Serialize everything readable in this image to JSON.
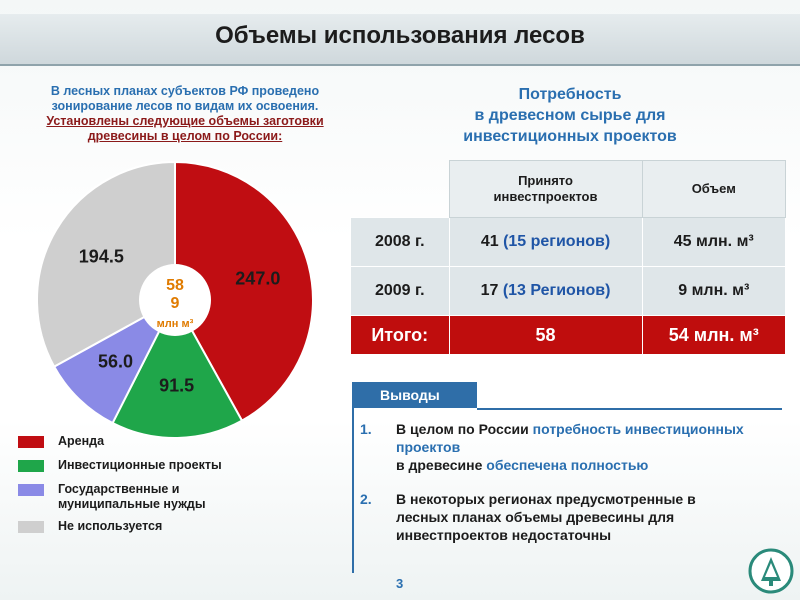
{
  "title": "Объемы использования лесов",
  "left_note": {
    "line1": "В лесных планах субъектов РФ проведено зонирование лесов по видам их освоения.",
    "line2": "Установлены следующие объемы заготовки древесины в целом по России:"
  },
  "center_label": {
    "value_a": "58",
    "value_b": "9",
    "unit": "млн м³"
  },
  "chart_data": {
    "type": "pie",
    "unit": "млн м³",
    "total": "589",
    "slices": [
      {
        "label": "Аренда",
        "value": 247.0,
        "value_text": "247.0",
        "color": "#c00d12"
      },
      {
        "label": "Инвестиционные проекты",
        "value": 91.5,
        "value_text": "91.5",
        "color": "#1fa64a"
      },
      {
        "label": "Государственные и муниципальные нужды",
        "value": 56.0,
        "value_text": "56.0",
        "color": "#8a8ae6"
      },
      {
        "label": "Не используется",
        "value": 194.5,
        "value_text": "194.5",
        "color": "#cfcfcf"
      }
    ]
  },
  "legend": {
    "items": [
      {
        "label": "Аренда",
        "color": "#c00d12"
      },
      {
        "label": "Инвестиционные проекты",
        "color": "#1fa64a"
      },
      {
        "label_line1": "Государственные и",
        "label_line2": "муниципальные нужды",
        "color": "#8a8ae6"
      },
      {
        "label": "Не используется",
        "color": "#cfcfcf"
      }
    ]
  },
  "right_title": {
    "line1": "Потребность",
    "line2": "в древесном сырье для",
    "line3": "инвестиционных проектов"
  },
  "table": {
    "header_accepted_line1": "Принято",
    "header_accepted_line2": "инвестпроектов",
    "header_volume": "Объем",
    "rows": [
      {
        "year": "2008 г.",
        "count": "41",
        "regions": "(15 регионов)",
        "volume": "45 млн. м³"
      },
      {
        "year": "2009 г.",
        "count": "17",
        "regions": "(13 Регионов)",
        "volume": "9 млн. м³"
      }
    ],
    "total": {
      "label": "Итого:",
      "count": "58",
      "volume": "54 млн. м³"
    }
  },
  "conclusions": {
    "tab": "Выводы",
    "items": [
      {
        "num": "1.",
        "part1": "В целом по России ",
        "part2": "потребность инвестиционных проектов",
        "part3": "в древесине ",
        "part4": "обеспечена полностью"
      },
      {
        "num": "2.",
        "text": "В некоторых регионах предусмотренные в лесных планах объемы древесины для инвестпроектов недостаточны"
      }
    ]
  },
  "page_number": "3",
  "logo_icon": "forest-agency-logo-icon"
}
